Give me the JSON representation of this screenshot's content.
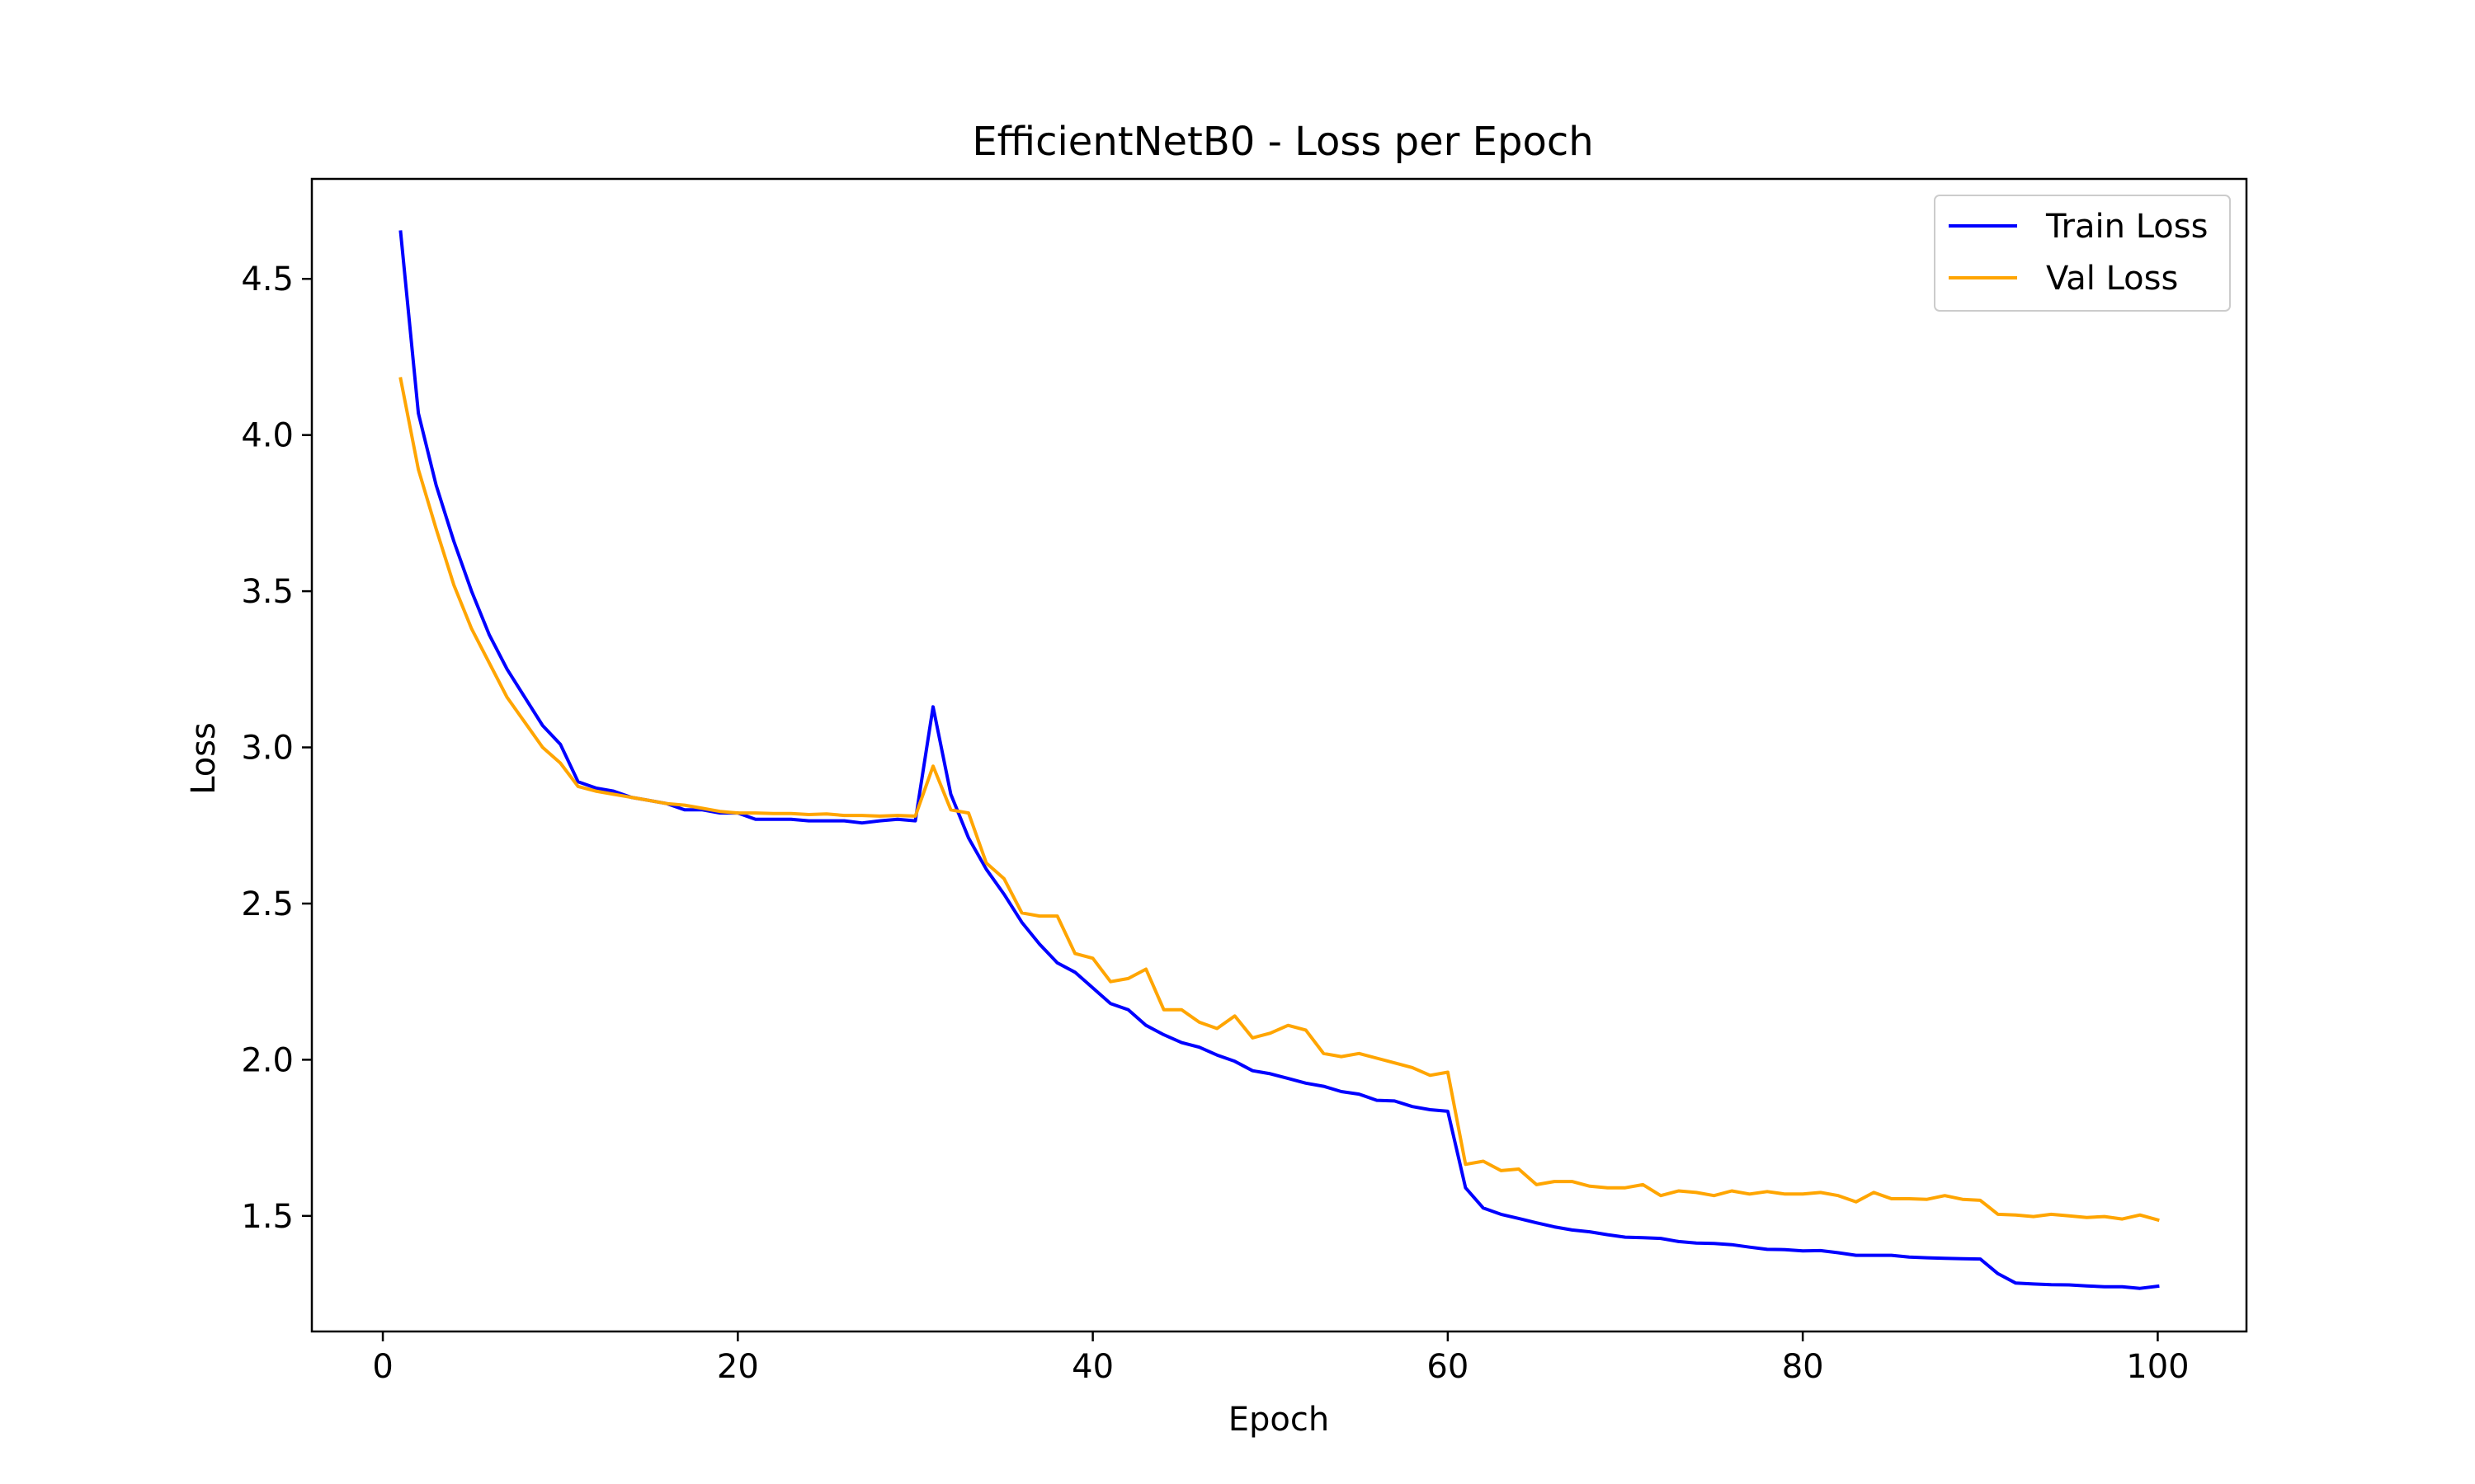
{
  "chart_data": {
    "type": "line",
    "title": "EfficientNetB0 - Loss per Epoch",
    "xlabel": "Epoch",
    "ylabel": "Loss",
    "xlim": [
      -4,
      105
    ],
    "ylim": [
      1.13,
      4.82
    ],
    "xticks": [
      0,
      20,
      40,
      60,
      80,
      100
    ],
    "yticks": [
      1.5,
      2.0,
      2.5,
      3.0,
      3.5,
      4.0,
      4.5
    ],
    "xtick_labels": [
      "0",
      "20",
      "40",
      "60",
      "80",
      "100"
    ],
    "ytick_labels": [
      "1.5",
      "2.0",
      "2.5",
      "3.0",
      "3.5",
      "4.0",
      "4.5"
    ],
    "grid": false,
    "legend_position": "upper right",
    "x": [
      1,
      2,
      3,
      4,
      5,
      6,
      7,
      8,
      9,
      10,
      11,
      12,
      13,
      14,
      15,
      16,
      17,
      18,
      19,
      20,
      21,
      22,
      23,
      24,
      25,
      26,
      27,
      28,
      29,
      30,
      31,
      32,
      33,
      34,
      35,
      36,
      37,
      38,
      39,
      40,
      41,
      42,
      43,
      44,
      45,
      46,
      47,
      48,
      49,
      50,
      51,
      52,
      53,
      54,
      55,
      56,
      57,
      58,
      59,
      60,
      61,
      62,
      63,
      64,
      65,
      66,
      67,
      68,
      69,
      70,
      71,
      72,
      73,
      74,
      75,
      76,
      77,
      78,
      79,
      80,
      81,
      82,
      83,
      84,
      85,
      86,
      87,
      88,
      89,
      90,
      91,
      92,
      93,
      94,
      95,
      96,
      97,
      98,
      99,
      100
    ],
    "series": [
      {
        "name": "Train Loss",
        "color": "#0000ff",
        "values": [
          4.65,
          4.07,
          3.84,
          3.66,
          3.5,
          3.36,
          3.25,
          3.16,
          3.07,
          3.01,
          2.89,
          2.87,
          2.86,
          2.84,
          2.83,
          2.82,
          2.8,
          2.8,
          2.79,
          2.79,
          2.77,
          2.77,
          2.77,
          2.765,
          2.765,
          2.765,
          2.758,
          2.765,
          2.77,
          2.765,
          3.13,
          2.85,
          2.71,
          2.61,
          2.53,
          2.44,
          2.37,
          2.31,
          2.28,
          2.23,
          2.18,
          2.16,
          2.11,
          2.08,
          2.055,
          2.04,
          2.015,
          1.995,
          1.965,
          1.955,
          1.94,
          1.925,
          1.915,
          1.898,
          1.89,
          1.87,
          1.868,
          1.85,
          1.84,
          1.835,
          1.59,
          1.525,
          1.505,
          1.492,
          1.478,
          1.465,
          1.455,
          1.449,
          1.44,
          1.432,
          1.43,
          1.428,
          1.418,
          1.413,
          1.412,
          1.408,
          1.4,
          1.393,
          1.392,
          1.388,
          1.389,
          1.382,
          1.374,
          1.374,
          1.374,
          1.368,
          1.366,
          1.364,
          1.363,
          1.362,
          1.315,
          1.285,
          1.282,
          1.28,
          1.279,
          1.276,
          1.273,
          1.273,
          1.268,
          1.275
        ]
      },
      {
        "name": "Val Loss",
        "color": "#ffa500",
        "values": [
          4.18,
          3.89,
          3.7,
          3.52,
          3.38,
          3.27,
          3.16,
          3.08,
          3.0,
          2.95,
          2.875,
          2.86,
          2.85,
          2.84,
          2.83,
          2.82,
          2.815,
          2.805,
          2.795,
          2.79,
          2.79,
          2.788,
          2.788,
          2.785,
          2.787,
          2.782,
          2.782,
          2.78,
          2.782,
          2.78,
          2.94,
          2.8,
          2.79,
          2.63,
          2.58,
          2.47,
          2.46,
          2.46,
          2.34,
          2.325,
          2.25,
          2.26,
          2.29,
          2.16,
          2.16,
          2.12,
          2.1,
          2.14,
          2.07,
          2.085,
          2.11,
          2.095,
          2.02,
          2.01,
          2.02,
          2.005,
          1.99,
          1.975,
          1.95,
          1.96,
          1.665,
          1.675,
          1.645,
          1.65,
          1.6,
          1.61,
          1.61,
          1.595,
          1.59,
          1.59,
          1.6,
          1.565,
          1.58,
          1.575,
          1.565,
          1.58,
          1.57,
          1.578,
          1.57,
          1.57,
          1.575,
          1.565,
          1.545,
          1.575,
          1.555,
          1.555,
          1.553,
          1.565,
          1.553,
          1.55,
          1.505,
          1.503,
          1.498,
          1.505,
          1.5,
          1.495,
          1.498,
          1.49,
          1.503,
          1.487
        ]
      }
    ]
  }
}
